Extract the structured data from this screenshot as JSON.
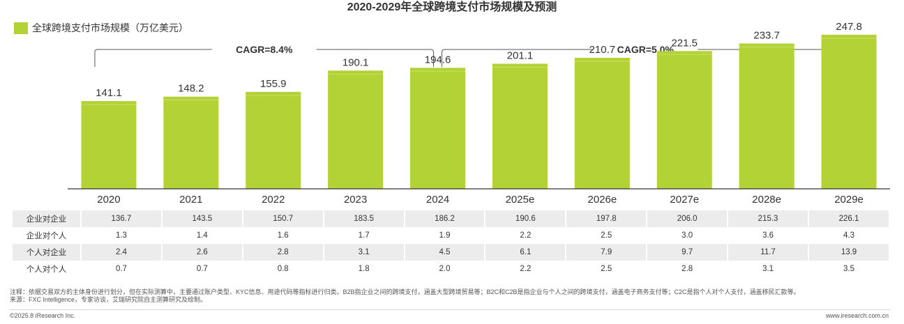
{
  "chart_data": {
    "type": "bar",
    "title": "2020-2029年全球跨境支付市场规模及预测",
    "legend": "全球跨境支付市场规模（万亿美元）",
    "categories": [
      "2020",
      "2021",
      "2022",
      "2023",
      "2024",
      "2025e",
      "2026e",
      "2027e",
      "2028e",
      "2029e"
    ],
    "values": [
      141.1,
      148.2,
      155.9,
      190.1,
      194.6,
      201.1,
      210.7,
      221.5,
      233.7,
      247.8
    ],
    "value_labels": [
      "141.1",
      "148.2",
      "155.9",
      "190.1",
      "194.6",
      "201.1",
      "210.7",
      "221.5",
      "233.7",
      "247.8"
    ],
    "ylim": [
      0,
      270
    ],
    "cagr": [
      {
        "label": "CAGR=8.4%",
        "from": "2020",
        "to": "2024"
      },
      {
        "label": "CAGR=5.0%",
        "from": "2024",
        "to": "2029e"
      }
    ],
    "color": "#b2d235"
  },
  "table": {
    "rows": [
      {
        "label": "企业对企业",
        "values": [
          "136.7",
          "143.5",
          "150.7",
          "183.5",
          "186.2",
          "190.6",
          "197.8",
          "206.0",
          "215.3",
          "226.1"
        ]
      },
      {
        "label": "企业对个人",
        "values": [
          "1.3",
          "1.4",
          "1.6",
          "1.7",
          "1.9",
          "2.2",
          "2.5",
          "3.0",
          "3.6",
          "4.3"
        ]
      },
      {
        "label": "个人对企业",
        "values": [
          "2.4",
          "2.6",
          "2.8",
          "3.1",
          "4.5",
          "6.1",
          "7.9",
          "9.7",
          "11.7",
          "13.9"
        ]
      },
      {
        "label": "个人对个人",
        "values": [
          "0.7",
          "0.7",
          "0.8",
          "1.8",
          "2.0",
          "2.2",
          "2.5",
          "2.8",
          "3.1",
          "3.5"
        ]
      }
    ]
  },
  "notes": {
    "note": "注释：依据交易双方的主体身份进行划分，但在实际测算中，主要通过账户类型、KYC信息、用途代码等指标进行归类。B2B指企业之间的跨境支付，涵盖大型跨境贸易等；B2C和C2B是指企业与个人之间的跨境支付，涵盖电子商务支付等；C2C是指个人对个人支付，涵盖移民汇款等。",
    "source": "来源：FXC Intelligence，专家访谈，艾瑞研究院自主测算研究及绘制。"
  },
  "footer": {
    "copyright": "©2025.8 iResearch Inc.",
    "site": "www.iresearch.com.cn"
  }
}
